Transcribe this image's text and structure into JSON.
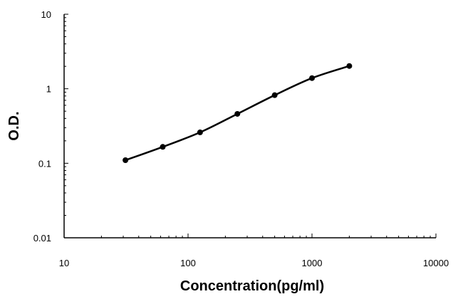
{
  "chart_data": {
    "type": "scatter",
    "x_label": "Concentration(pg/ml)",
    "y_label": "O.D.",
    "xlog": true,
    "ylog": true,
    "smooth_line": true,
    "xlim": [
      10,
      10000
    ],
    "xticks": [
      10,
      100,
      1000,
      10000
    ],
    "ylim": [
      0.01,
      10
    ],
    "yticks": [
      0.01,
      0.1,
      1,
      10
    ],
    "series": [
      {
        "color": "#000000",
        "x": [
          31.25,
          62.5,
          125,
          250,
          500,
          1000,
          2000
        ],
        "values": [
          0.11,
          0.166,
          0.26,
          0.46,
          0.82,
          1.39,
          2.02
        ]
      }
    ]
  }
}
